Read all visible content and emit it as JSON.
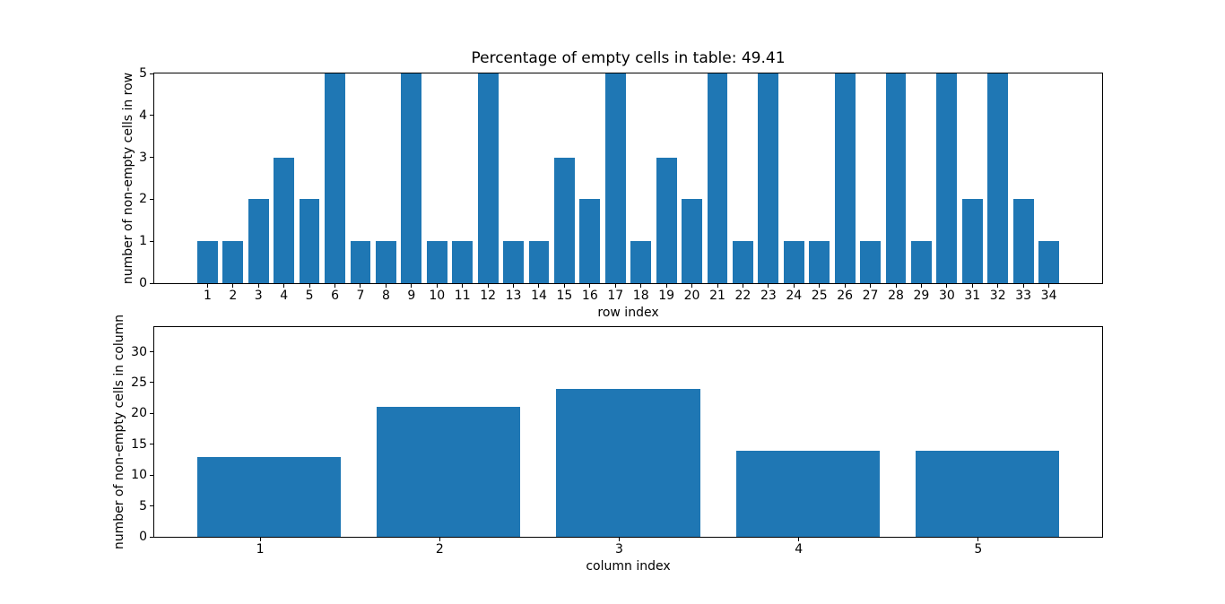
{
  "figure": {
    "background": "#ffffff"
  },
  "chart_data": [
    {
      "type": "bar",
      "title": "Percentage of empty cells in table: 49.41",
      "xlabel": "row index",
      "ylabel": "number of non-empty cells in row",
      "categories": [
        1,
        2,
        3,
        4,
        5,
        6,
        7,
        8,
        9,
        10,
        11,
        12,
        13,
        14,
        15,
        16,
        17,
        18,
        19,
        20,
        21,
        22,
        23,
        24,
        25,
        26,
        27,
        28,
        29,
        30,
        31,
        32,
        33,
        34
      ],
      "values": [
        1,
        1,
        2,
        3,
        2,
        5,
        1,
        1,
        5,
        1,
        1,
        5,
        1,
        1,
        3,
        2,
        5,
        1,
        3,
        2,
        5,
        1,
        5,
        1,
        1,
        5,
        1,
        5,
        1,
        5,
        2,
        5,
        2,
        1
      ],
      "bar_color": "#1f77b4",
      "bar_width": 0.8,
      "bar_x_offset": 0,
      "xlim": [
        -1.09,
        36.09
      ],
      "ylim": [
        0,
        5
      ],
      "yticks": [
        0,
        1,
        2,
        3,
        4,
        5
      ],
      "grid": false,
      "legend_position": null
    },
    {
      "type": "bar",
      "title": "",
      "xlabel": "column index",
      "ylabel": "number of non-empty cells in column",
      "categories": [
        1,
        2,
        3,
        4,
        5
      ],
      "values": [
        13,
        21,
        24,
        14,
        14
      ],
      "bar_color": "#1f77b4",
      "bar_width": 0.8,
      "bar_x_offset": 0.05,
      "xlim": [
        0.41,
        5.69
      ],
      "ylim": [
        0,
        34
      ],
      "yticks": [
        0,
        5,
        10,
        15,
        20,
        25,
        30
      ],
      "grid": false,
      "legend_position": null
    }
  ]
}
